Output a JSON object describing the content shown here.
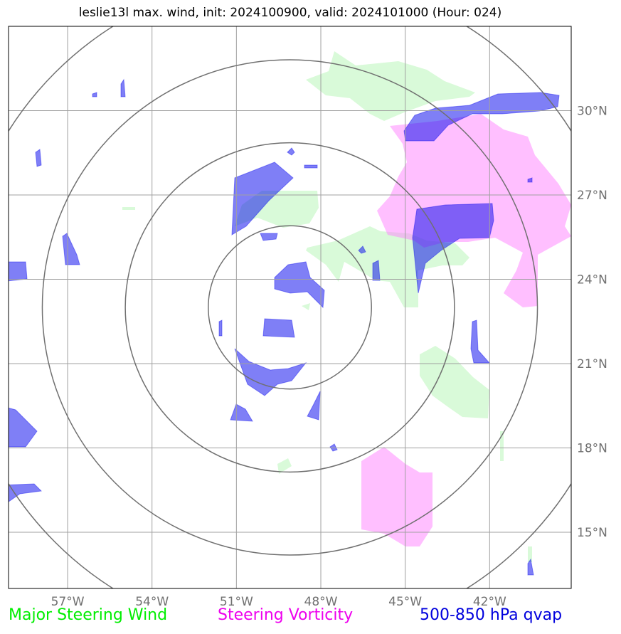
{
  "title": "leslie13l max. wind, init: 2024100900, valid: 2024101000 (Hour: 024)",
  "map": {
    "lon_range": [
      -59.1,
      -39.1
    ],
    "lat_range": [
      13.0,
      33.0
    ],
    "lon_ticks": [
      {
        "lon": -57,
        "label": "57°W"
      },
      {
        "lon": -54,
        "label": "54°W"
      },
      {
        "lon": -51,
        "label": "51°W"
      },
      {
        "lon": -48,
        "label": "48°W"
      },
      {
        "lon": -45,
        "label": "45°W"
      },
      {
        "lon": -42,
        "label": "42°W"
      }
    ],
    "lat_ticks": [
      {
        "lat": 30,
        "label": "30°N"
      },
      {
        "lat": 27,
        "label": "27°N"
      },
      {
        "lat": 24,
        "label": "24°N"
      },
      {
        "lat": 21,
        "label": "21°N"
      },
      {
        "lat": 18,
        "label": "18°N"
      },
      {
        "lat": 15,
        "label": "15°N"
      }
    ],
    "grid": true,
    "range_rings": {
      "center": [
        -49.1,
        23.0
      ],
      "radii_deg": [
        2.9,
        5.85,
        8.8,
        11.8
      ]
    }
  },
  "colors": {
    "steering_wind": "#aaf5aa",
    "steering_vorticity": "#ff80ff",
    "qvap": "#0000ee",
    "grid": "#a0a0a0",
    "rings": "#707070",
    "tick_label": "#707070"
  },
  "legend": {
    "wind": {
      "label": "Major Steering Wind",
      "color": "#00ee00"
    },
    "vorticity": {
      "label": "Steering Vorticity",
      "color": "#ee00ee"
    },
    "qvap": {
      "label": "500-850 hPa qvap",
      "color": "#0000dd"
    }
  }
}
